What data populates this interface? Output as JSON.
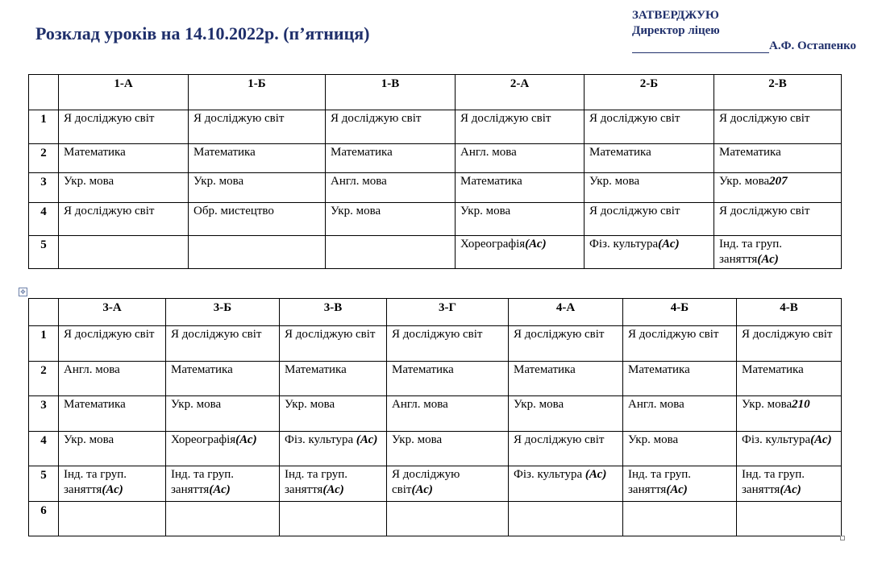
{
  "header": {
    "title": "Розклад уроків на 14.10.2022р. (п’ятниця)",
    "approve": "ЗАТВЕРДЖУЮ",
    "position": "Директор ліцею",
    "signer": "А.Ф. Остапенко"
  },
  "tables": [
    {
      "classes": [
        "1-А",
        "1-Б",
        "1-В",
        "2-А",
        "2-Б",
        "2-В"
      ],
      "rows": [
        {
          "num": "1",
          "cells": [
            {
              "t": "Я досліджую світ"
            },
            {
              "t": "Я досліджую світ"
            },
            {
              "t": "Я досліджую світ"
            },
            {
              "t": "Я досліджую світ"
            },
            {
              "t": "Я досліджую світ"
            },
            {
              "t": "Я досліджую світ"
            }
          ]
        },
        {
          "num": "2",
          "cells": [
            {
              "t": "Математика"
            },
            {
              "t": "Математика"
            },
            {
              "t": "Математика"
            },
            {
              "t": "Англ. мова"
            },
            {
              "t": "Математика"
            },
            {
              "t": "Математика"
            }
          ]
        },
        {
          "num": "3",
          "cells": [
            {
              "t": "Укр. мова"
            },
            {
              "t": "Укр. мова"
            },
            {
              "t": "Англ. мова"
            },
            {
              "t": "Математика"
            },
            {
              "t": "Укр. мова"
            },
            {
              "t": "Укр. мова",
              "s": "207"
            }
          ]
        },
        {
          "num": "4",
          "cells": [
            {
              "t": "Я досліджую світ"
            },
            {
              "t": "Обр. мистецтво"
            },
            {
              "t": "Укр. мова"
            },
            {
              "t": "Укр. мова"
            },
            {
              "t": "Я досліджую світ"
            },
            {
              "t": "Я досліджую світ"
            }
          ]
        },
        {
          "num": "5",
          "cells": [
            {
              "t": ""
            },
            {
              "t": ""
            },
            {
              "t": ""
            },
            {
              "t": "Хореографія",
              "s": "(Ас)"
            },
            {
              "t": "Фіз. культура",
              "s": "(Ас)"
            },
            {
              "t": "Інд. та груп. заняття",
              "s": "(Ас)"
            }
          ]
        }
      ]
    },
    {
      "classes": [
        "3-А",
        "3-Б",
        "3-В",
        "3-Г",
        "4-А",
        "4-Б",
        "4-В"
      ],
      "rows": [
        {
          "num": "1",
          "cells": [
            {
              "t": "Я досліджую світ"
            },
            {
              "t": "Я досліджую світ"
            },
            {
              "t": "Я досліджую світ"
            },
            {
              "t": "Я досліджую світ"
            },
            {
              "t": "Я досліджую світ"
            },
            {
              "t": "Я досліджую світ"
            },
            {
              "t": "Я досліджую світ"
            }
          ]
        },
        {
          "num": "2",
          "cells": [
            {
              "t": "Англ. мова"
            },
            {
              "t": "Математика"
            },
            {
              "t": "Математика"
            },
            {
              "t": "Математика"
            },
            {
              "t": "Математика"
            },
            {
              "t": "Математика"
            },
            {
              "t": "Математика"
            }
          ]
        },
        {
          "num": "3",
          "cells": [
            {
              "t": "Математика"
            },
            {
              "t": "Укр. мова"
            },
            {
              "t": "Укр. мова"
            },
            {
              "t": "Англ. мова"
            },
            {
              "t": "Укр. мова"
            },
            {
              "t": "Англ. мова"
            },
            {
              "t": "Укр. мова",
              "s": "210"
            }
          ]
        },
        {
          "num": "4",
          "cells": [
            {
              "t": "Укр. мова"
            },
            {
              "t": "Хореографія",
              "s": "(Ас)"
            },
            {
              "t": "Фіз. культура ",
              "s": "(Ас)"
            },
            {
              "t": "Укр. мова"
            },
            {
              "t": "Я досліджую світ"
            },
            {
              "t": "Укр. мова"
            },
            {
              "t": "Фіз. культура",
              "s": "(Ас)"
            }
          ]
        },
        {
          "num": "5",
          "cells": [
            {
              "t": "Інд. та груп. заняття",
              "s": "(Ас)"
            },
            {
              "t": "Інд. та груп. заняття",
              "s": "(Ас)"
            },
            {
              "t": "Інд. та груп. заняття",
              "s": "(Ас)"
            },
            {
              "t": "Я досліджую світ",
              "s": "(Ас)"
            },
            {
              "t": "Фіз. культура ",
              "s": "(Ас)"
            },
            {
              "t": "Інд. та груп. заняття",
              "s": "(Ас)"
            },
            {
              "t": "Інд. та груп. заняття",
              "s": "(Ас)"
            }
          ]
        },
        {
          "num": "6",
          "cells": [
            {
              "t": ""
            },
            {
              "t": ""
            },
            {
              "t": ""
            },
            {
              "t": ""
            },
            {
              "t": ""
            },
            {
              "t": ""
            },
            {
              "t": ""
            }
          ]
        }
      ]
    }
  ]
}
